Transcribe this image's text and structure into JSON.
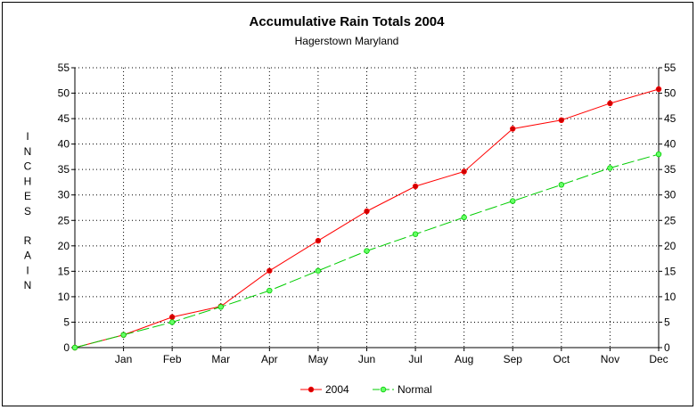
{
  "chart_data": {
    "type": "line",
    "title": "Accumulative Rain Totals 2004",
    "subtitle": "Hagerstown Maryland",
    "ylabel": "INCHES RAIN",
    "xlabel": "",
    "categories": [
      "",
      "Jan",
      "Feb",
      "Mar",
      "Apr",
      "May",
      "Jun",
      "Jul",
      "Aug",
      "Sep",
      "Oct",
      "Nov",
      "Dec"
    ],
    "ylim": [
      0,
      55
    ],
    "yticks": [
      0,
      5,
      10,
      15,
      20,
      25,
      30,
      35,
      40,
      45,
      50,
      55
    ],
    "grid": true,
    "legend_position": "bottom",
    "series": [
      {
        "name": "2004",
        "color": "#ff0000",
        "marker_color": "#cc0000",
        "dash": "solid",
        "values": [
          0,
          2.5,
          6.0,
          8.1,
          15.1,
          21.0,
          26.8,
          31.7,
          34.6,
          43.0,
          44.7,
          48.0,
          50.8
        ]
      },
      {
        "name": "Normal",
        "color": "#00cc00",
        "marker_color": "#66ff66",
        "dash": "dashed",
        "values": [
          0,
          2.5,
          5.0,
          8.0,
          11.2,
          15.1,
          19.0,
          22.3,
          25.6,
          28.8,
          32.0,
          35.3,
          38.0
        ]
      }
    ]
  }
}
